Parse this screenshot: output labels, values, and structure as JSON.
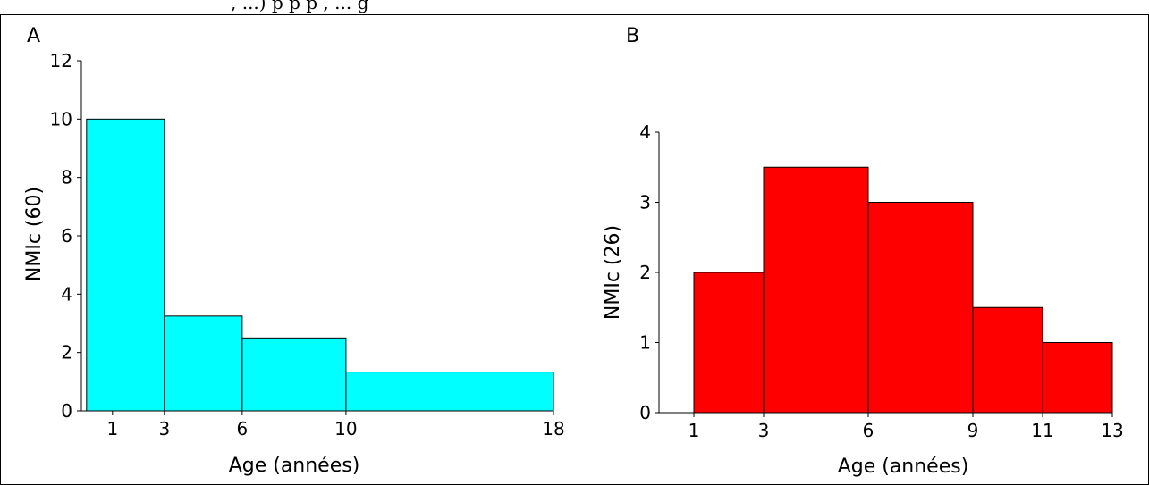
{
  "top_text": ", ...) p                                                                    p           p    , ...   g",
  "chart_data": [
    {
      "type": "bar",
      "panel": "A",
      "bins": [
        [
          0,
          3
        ],
        [
          3,
          6
        ],
        [
          6,
          10
        ],
        [
          10,
          18
        ]
      ],
      "values": [
        10,
        3.25,
        2.5,
        1.33
      ],
      "bar_color": "#00FFFF",
      "xticks": [
        1,
        3,
        6,
        10,
        18
      ],
      "xtick_labels": [
        "1",
        "3",
        "6",
        "10",
        "18"
      ],
      "yticks": [
        0,
        2,
        4,
        6,
        8,
        10,
        12
      ],
      "ytick_labels": [
        "0",
        "2",
        "4",
        "6",
        "8",
        "10",
        "12"
      ],
      "xlim": [
        -0.2,
        18
      ],
      "ylim": [
        0,
        12
      ],
      "xlabel": "Age (années)",
      "ylabel": "NMIc (60)",
      "grid": false
    },
    {
      "type": "bar",
      "panel": "B",
      "bins": [
        [
          1,
          3
        ],
        [
          3,
          6
        ],
        [
          6,
          9
        ],
        [
          9,
          11
        ],
        [
          11,
          13
        ]
      ],
      "values": [
        2,
        3.5,
        3,
        1.5,
        1
      ],
      "bar_color": "#FF0000",
      "xticks": [
        1,
        3,
        6,
        9,
        11,
        13
      ],
      "xtick_labels": [
        "1",
        "3",
        "6",
        "9",
        "11",
        "13"
      ],
      "yticks": [
        0,
        1,
        2,
        3,
        4
      ],
      "ytick_labels": [
        "0",
        "1",
        "2",
        "3",
        "4"
      ],
      "xlim": [
        0,
        13
      ],
      "ylim": [
        0,
        4
      ],
      "xlabel": "Age (années)",
      "ylabel": "NMIc (26)",
      "grid": false
    }
  ]
}
